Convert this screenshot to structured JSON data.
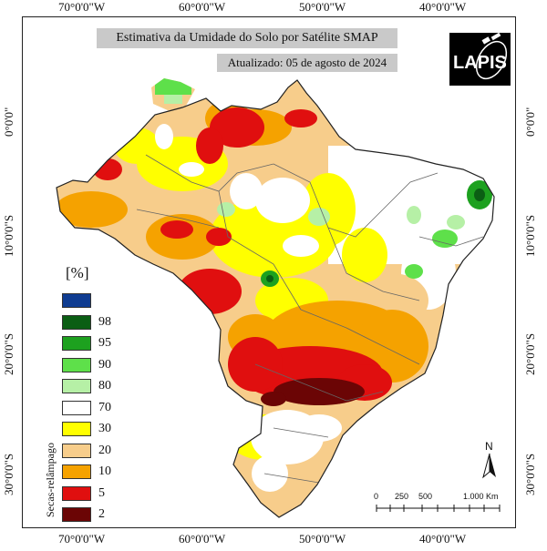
{
  "title": "Estimativa da Umidade do Solo por Satélite SMAP",
  "updated": "Atualizado: 05 de agosto de 2024",
  "logo_text": "LAPIS",
  "graticule": {
    "lon": [
      "70°0'0\"W",
      "60°0'0\"W",
      "50°0'0\"W",
      "40°0'0\"W"
    ],
    "lat": [
      "0°0'0\"",
      "10°0'0\"S",
      "20°0'0\"S",
      "30°0'0\"S"
    ]
  },
  "legend": {
    "title": "[%]",
    "side_label": "Secas-relâmpago",
    "items": [
      {
        "label": "",
        "color": "#0f3c91"
      },
      {
        "label": "98",
        "color": "#0b5e14"
      },
      {
        "label": "95",
        "color": "#1da11f"
      },
      {
        "label": "90",
        "color": "#5ee04a"
      },
      {
        "label": "80",
        "color": "#b6f0a6"
      },
      {
        "label": "70",
        "color": "#ffffff"
      },
      {
        "label": "30",
        "color": "#ffff00"
      },
      {
        "label": "20",
        "color": "#f7cd8b"
      },
      {
        "label": "10",
        "color": "#f5a200"
      },
      {
        "label": "5",
        "color": "#e00f0f"
      },
      {
        "label": "2",
        "color": "#6b0505"
      }
    ]
  },
  "north_label": "N",
  "scale": {
    "labels": [
      "0",
      "250",
      "500",
      "1.000 Km"
    ]
  }
}
